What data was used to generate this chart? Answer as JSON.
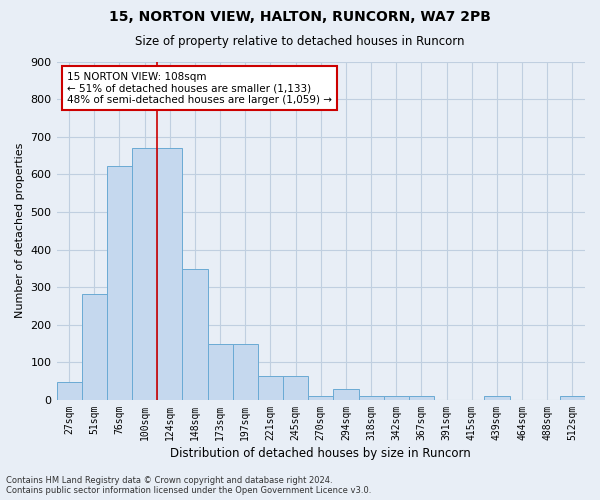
{
  "title1": "15, NORTON VIEW, HALTON, RUNCORN, WA7 2PB",
  "title2": "Size of property relative to detached houses in Runcorn",
  "xlabel": "Distribution of detached houses by size in Runcorn",
  "ylabel": "Number of detached properties",
  "categories": [
    "27sqm",
    "51sqm",
    "76sqm",
    "100sqm",
    "124sqm",
    "148sqm",
    "173sqm",
    "197sqm",
    "221sqm",
    "245sqm",
    "270sqm",
    "294sqm",
    "318sqm",
    "342sqm",
    "367sqm",
    "391sqm",
    "415sqm",
    "439sqm",
    "464sqm",
    "488sqm",
    "512sqm"
  ],
  "bar_values": [
    47,
    282,
    621,
    670,
    670,
    347,
    148,
    148,
    65,
    65,
    10,
    30,
    10,
    10,
    10,
    0,
    0,
    10,
    0,
    0,
    10
  ],
  "bar_color": "#c5d8ee",
  "bar_edge_color": "#6aaad4",
  "vline_color": "#cc0000",
  "annotation_text": "15 NORTON VIEW: 108sqm\n← 51% of detached houses are smaller (1,133)\n48% of semi-detached houses are larger (1,059) →",
  "annotation_box_color": "white",
  "annotation_box_edge_color": "#cc0000",
  "ylim": [
    0,
    900
  ],
  "yticks": [
    0,
    100,
    200,
    300,
    400,
    500,
    600,
    700,
    800,
    900
  ],
  "grid_color": "#c0cfe0",
  "bg_color": "#e8eef6",
  "footnote": "Contains HM Land Registry data © Crown copyright and database right 2024.\nContains public sector information licensed under the Open Government Licence v3.0."
}
